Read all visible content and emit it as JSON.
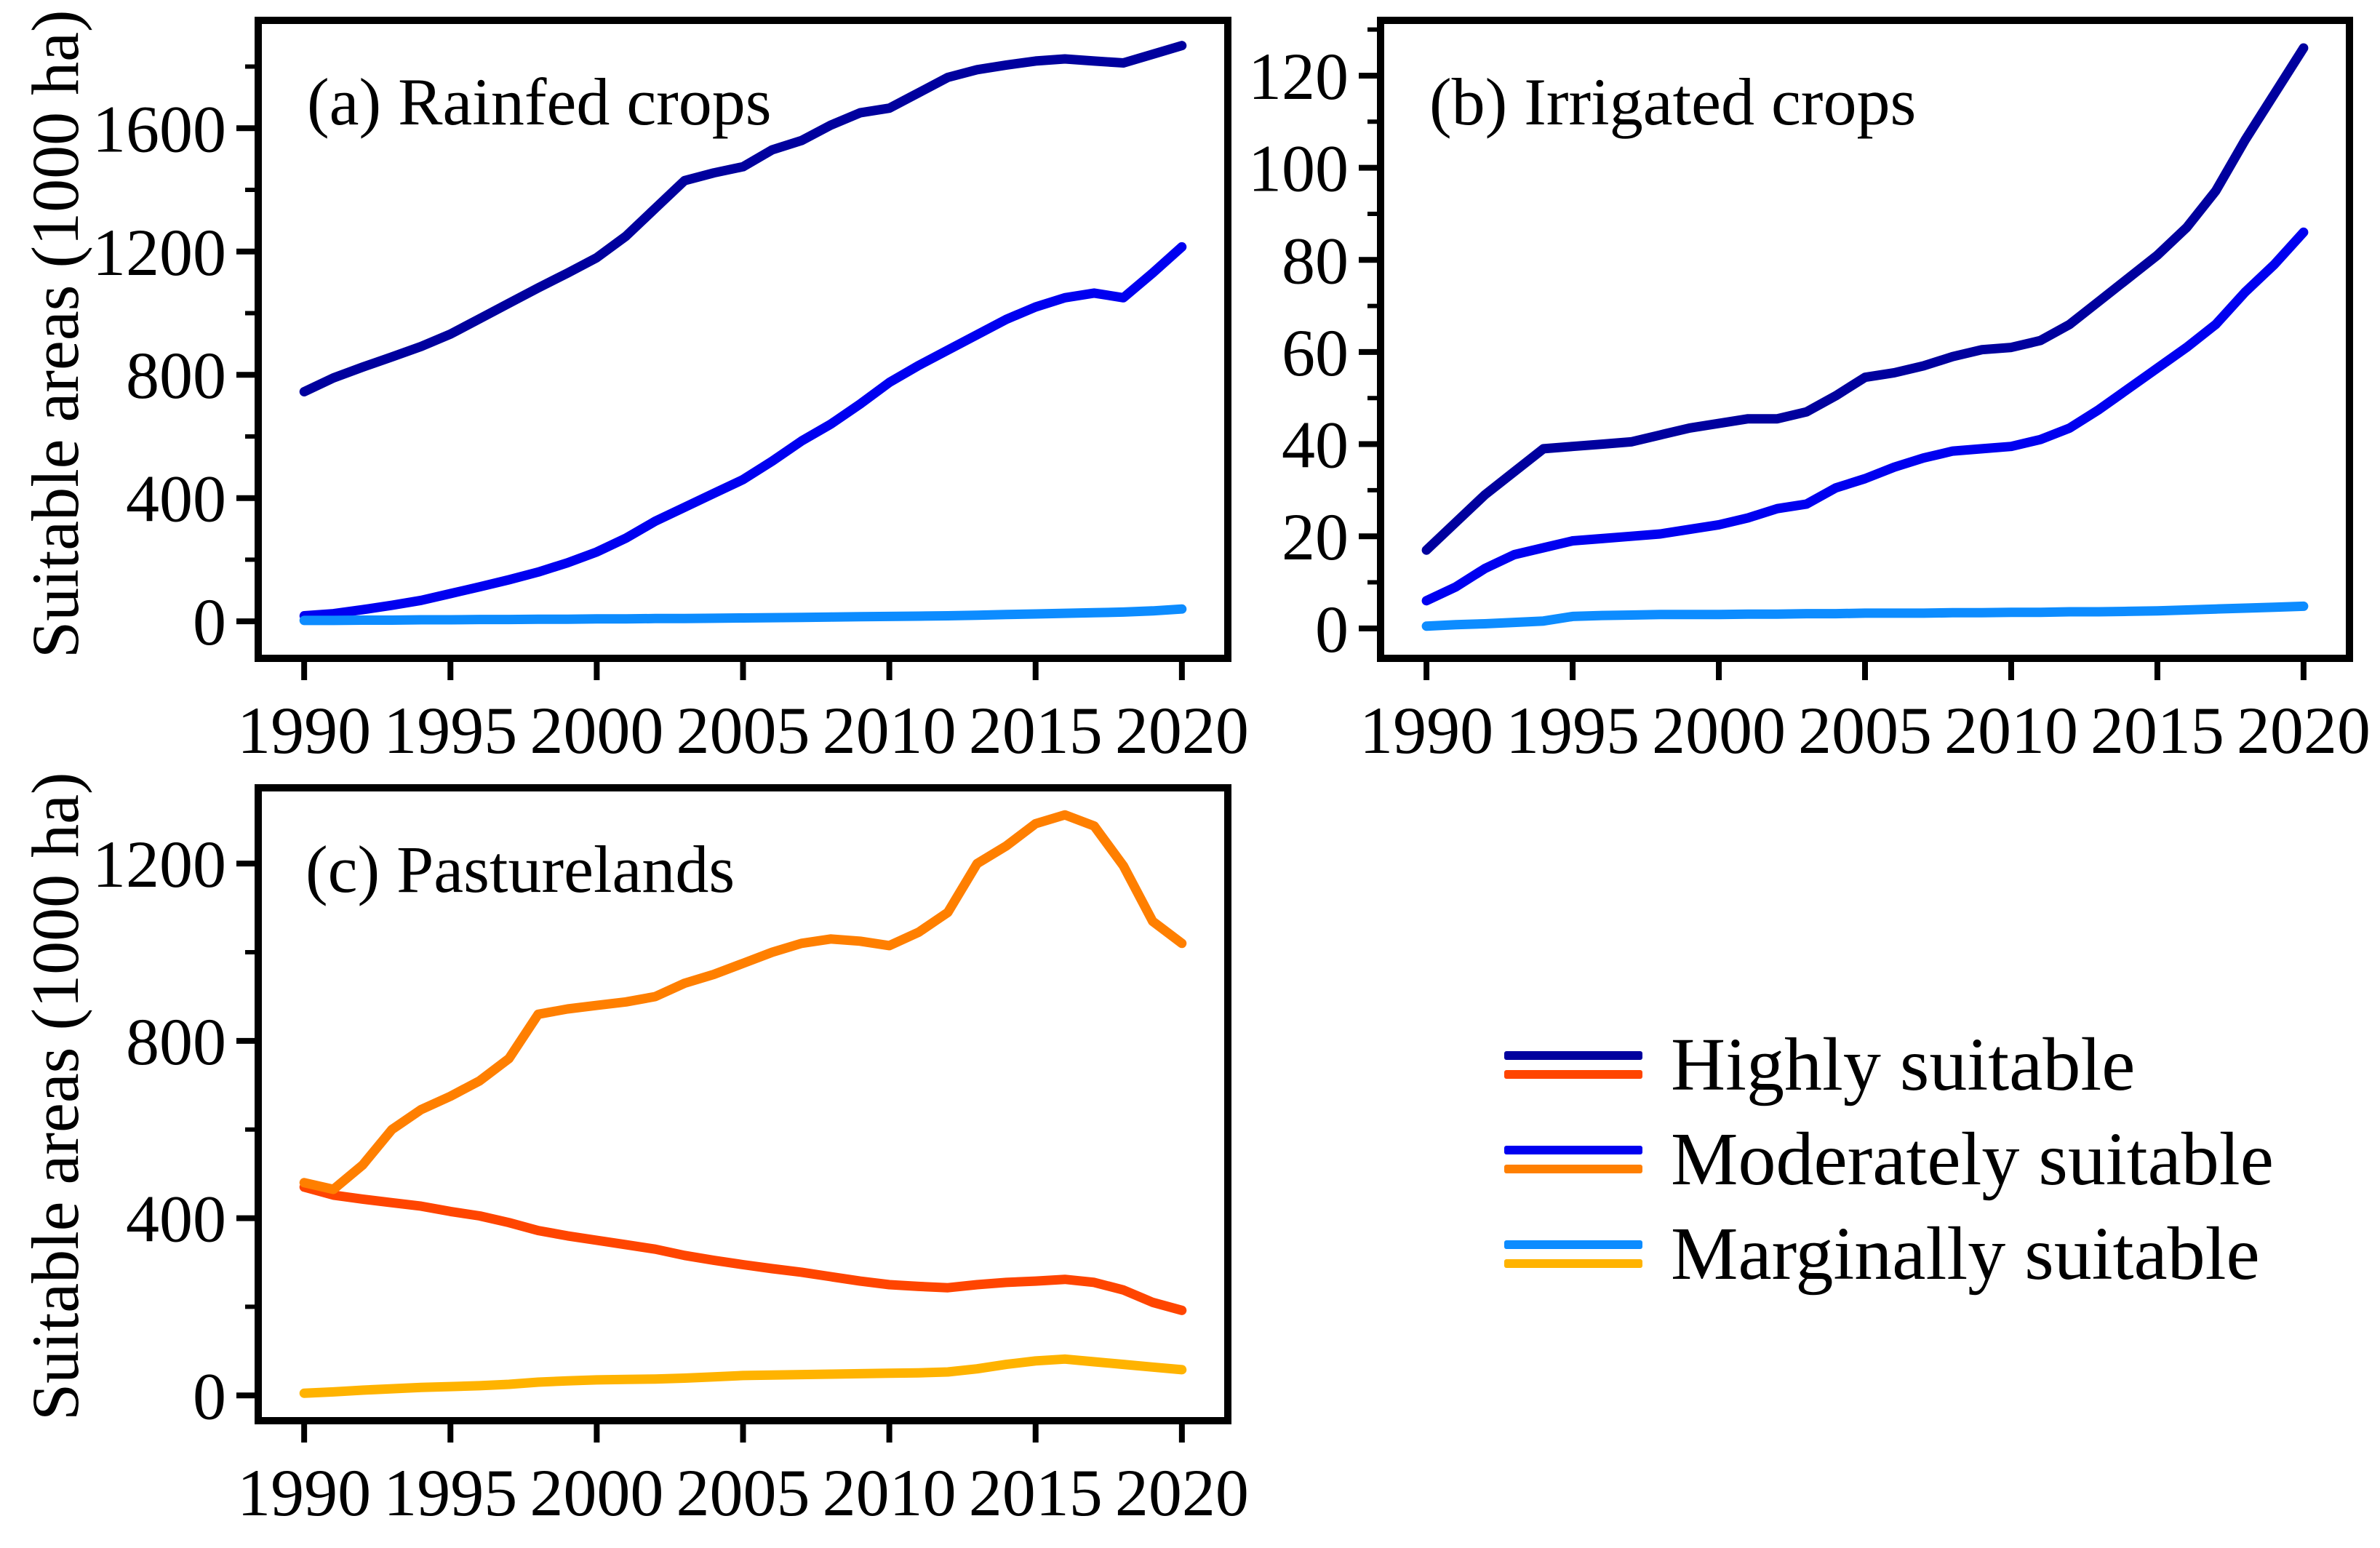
{
  "figure": {
    "ylabel": "Suitable areas (1000 ha)",
    "background_color": "#ffffff",
    "axis_color": "#000000",
    "palette": {
      "navy": "#00009e",
      "blue": "#0000f0",
      "sky_blue": "#0d8cff",
      "orange_red": "#ff4500",
      "orange": "#ff7f00",
      "amber": "#ffb300"
    }
  },
  "legend": {
    "position": "bottom-right",
    "entries": [
      {
        "label": "Highly suitable",
        "icons": [
          "navy-line",
          "orangered-line"
        ],
        "line_colors": [
          "#00009e",
          "#ff4500"
        ]
      },
      {
        "label": "Moderately suitable",
        "icons": [
          "blue-line",
          "orange-line"
        ],
        "line_colors": [
          "#0000f0",
          "#ff7f00"
        ]
      },
      {
        "label": "Marginally suitable",
        "icons": [
          "skyblue-line",
          "amber-line"
        ],
        "line_colors": [
          "#0d8cff",
          "#ffb300"
        ]
      }
    ]
  },
  "chart_data": [
    {
      "type": "line",
      "panel": "a",
      "title": "(a) Rainfed crops",
      "xlabel": "",
      "ylabel": "Suitable areas (1000 ha)",
      "grid": false,
      "x": [
        1990,
        1991,
        1992,
        1993,
        1994,
        1995,
        1996,
        1997,
        1998,
        1999,
        2000,
        2001,
        2002,
        2003,
        2004,
        2005,
        2006,
        2007,
        2008,
        2009,
        2010,
        2011,
        2012,
        2013,
        2014,
        2015,
        2016,
        2017,
        2018,
        2019,
        2020
      ],
      "xlim": [
        1988.43,
        2021.57
      ],
      "ylim": [
        -120,
        1950
      ],
      "xticks": [
        1990,
        1995,
        2000,
        2005,
        2010,
        2015,
        2020
      ],
      "yticks_major": [
        0,
        400,
        800,
        1200,
        1600
      ],
      "yticks_minor": [
        200,
        600,
        1000,
        1400,
        1800
      ],
      "series": [
        {
          "name": "Highly suitable",
          "color": "#00009e",
          "values": [
            745,
            790,
            825,
            858,
            892,
            932,
            982,
            1032,
            1082,
            1130,
            1180,
            1250,
            1340,
            1430,
            1455,
            1475,
            1530,
            1560,
            1610,
            1650,
            1665,
            1715,
            1765,
            1790,
            1805,
            1818,
            1825,
            1818,
            1812,
            1840,
            1868
          ]
        },
        {
          "name": "Moderately suitable",
          "color": "#0000f0",
          "values": [
            18,
            25,
            38,
            52,
            68,
            90,
            112,
            135,
            160,
            190,
            225,
            270,
            325,
            370,
            415,
            460,
            520,
            585,
            640,
            705,
            775,
            830,
            880,
            930,
            980,
            1020,
            1050,
            1065,
            1050,
            1130,
            1215
          ]
        },
        {
          "name": "Marginally suitable",
          "color": "#0d8cff",
          "values": [
            3,
            3,
            4,
            4,
            5,
            5,
            6,
            6,
            7,
            7,
            8,
            8,
            9,
            9,
            10,
            11,
            12,
            13,
            14,
            15,
            16,
            17,
            18,
            20,
            22,
            24,
            26,
            28,
            30,
            34,
            40
          ]
        }
      ]
    },
    {
      "type": "line",
      "panel": "b",
      "title": "(b) Irrigated crops",
      "xlabel": "",
      "ylabel": "",
      "grid": false,
      "x": [
        1990,
        1991,
        1992,
        1993,
        1994,
        1995,
        1996,
        1997,
        1998,
        1999,
        2000,
        2001,
        2002,
        2003,
        2004,
        2005,
        2006,
        2007,
        2008,
        2009,
        2010,
        2011,
        2012,
        2013,
        2014,
        2015,
        2016,
        2017,
        2018,
        2019,
        2020
      ],
      "xlim": [
        1988.43,
        2021.57
      ],
      "ylim": [
        -6.5,
        132
      ],
      "xticks": [
        1990,
        1995,
        2000,
        2005,
        2010,
        2015,
        2020
      ],
      "yticks_major": [
        0,
        20,
        40,
        60,
        80,
        100,
        120
      ],
      "yticks_minor": [
        10,
        30,
        50,
        70,
        90,
        110,
        130
      ],
      "series": [
        {
          "name": "Highly suitable",
          "color": "#00009e",
          "values": [
            17,
            23,
            29,
            34,
            39,
            39.5,
            40,
            40.5,
            42,
            43.5,
            44.5,
            45.5,
            45.5,
            47,
            50.5,
            54.5,
            55.5,
            57,
            59,
            60.5,
            61,
            62.5,
            66,
            71,
            76,
            81,
            87,
            95,
            106,
            116,
            126
          ]
        },
        {
          "name": "Moderately suitable",
          "color": "#0000f0",
          "values": [
            6,
            9,
            13,
            16,
            17.5,
            19,
            19.5,
            20,
            20.5,
            21.5,
            22.5,
            24,
            26,
            27,
            30.5,
            32.5,
            35,
            37,
            38.5,
            39,
            39.5,
            41,
            43.5,
            47.5,
            52,
            56.5,
            61,
            66,
            73,
            79,
            86
          ]
        },
        {
          "name": "Marginally suitable",
          "color": "#0d8cff",
          "values": [
            0.5,
            0.8,
            1,
            1.3,
            1.6,
            2.6,
            2.8,
            2.9,
            3,
            3,
            3,
            3.1,
            3.1,
            3.2,
            3.2,
            3.3,
            3.3,
            3.3,
            3.4,
            3.4,
            3.5,
            3.5,
            3.6,
            3.6,
            3.7,
            3.8,
            4,
            4.2,
            4.4,
            4.6,
            4.8
          ]
        }
      ]
    },
    {
      "type": "line",
      "panel": "c",
      "title": "(c) Pasturelands",
      "xlabel": "",
      "ylabel": "Suitable areas (1000 ha)",
      "grid": false,
      "x": [
        1990,
        1991,
        1992,
        1993,
        1994,
        1995,
        1996,
        1997,
        1998,
        1999,
        2000,
        2001,
        2002,
        2003,
        2004,
        2005,
        2006,
        2007,
        2008,
        2009,
        2010,
        2011,
        2012,
        2013,
        2014,
        2015,
        2016,
        2017,
        2018,
        2019,
        2020
      ],
      "xlim": [
        1988.43,
        2021.57
      ],
      "ylim": [
        -57,
        1371
      ],
      "xticks": [
        1990,
        1995,
        2000,
        2005,
        2010,
        2015,
        2020
      ],
      "yticks_major": [
        0,
        400,
        800,
        1200
      ],
      "yticks_minor": [
        200,
        600,
        1000
      ],
      "series": [
        {
          "name": "Highly suitable",
          "color": "#ff4500",
          "values": [
            470,
            452,
            443,
            435,
            427,
            415,
            405,
            390,
            372,
            360,
            350,
            340,
            330,
            316,
            305,
            295,
            286,
            278,
            268,
            258,
            250,
            246,
            243,
            250,
            255,
            258,
            262,
            255,
            238,
            210,
            192
          ]
        },
        {
          "name": "Moderately suitable",
          "color": "#ff7f00",
          "values": [
            480,
            465,
            520,
            600,
            645,
            675,
            710,
            760,
            860,
            872,
            880,
            888,
            900,
            930,
            950,
            975,
            1000,
            1020,
            1030,
            1025,
            1015,
            1045,
            1090,
            1200,
            1240,
            1290,
            1310,
            1285,
            1195,
            1070,
            1020
          ]
        },
        {
          "name": "Marginally suitable",
          "color": "#ffb300",
          "values": [
            5,
            8,
            12,
            15,
            18,
            20,
            22,
            25,
            30,
            33,
            35,
            36,
            37,
            39,
            42,
            45,
            46,
            47,
            48,
            49,
            50,
            51,
            53,
            60,
            70,
            78,
            82,
            76,
            70,
            64,
            58
          ]
        }
      ]
    }
  ]
}
